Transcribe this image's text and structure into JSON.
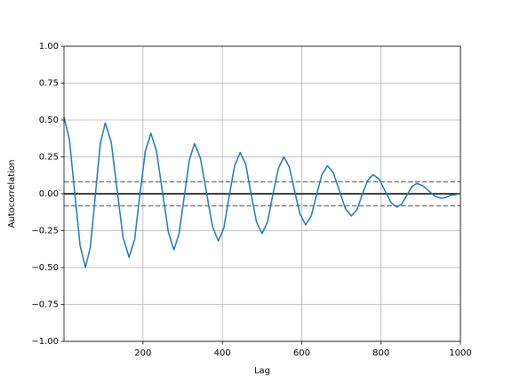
{
  "chart_data": {
    "type": "line",
    "xlabel": "Lag",
    "ylabel": "Autocorrelation",
    "x": [
      1,
      14.5,
      28,
      41.5,
      55,
      67.5,
      80,
      92.5,
      105,
      120,
      135,
      150,
      165,
      179,
      192,
      206,
      220,
      234,
      249,
      264,
      278,
      291,
      304,
      317,
      330,
      345,
      360,
      375,
      390,
      404,
      417,
      431,
      445,
      459,
      472,
      486,
      500,
      514,
      527,
      541,
      555,
      569,
      582,
      596,
      610,
      624,
      637,
      651,
      665,
      680,
      695,
      710,
      725,
      739,
      752,
      766,
      780,
      795,
      810,
      825,
      840,
      852,
      865,
      878,
      890,
      905,
      920,
      935,
      950,
      963,
      975,
      988,
      1000
    ],
    "series": [
      {
        "name": "autocorrelation",
        "color": "#1f77b4",
        "values": [
          0.52,
          0.37,
          0.01,
          -0.35,
          -0.5,
          -0.36,
          -0.01,
          0.34,
          0.48,
          0.35,
          0.025,
          -0.3,
          -0.43,
          -0.31,
          -0.01,
          0.29,
          0.41,
          0.29,
          0.015,
          -0.26,
          -0.38,
          -0.27,
          -0.02,
          0.23,
          0.34,
          0.24,
          0.01,
          -0.22,
          -0.32,
          -0.23,
          -0.02,
          0.19,
          0.28,
          0.2,
          0.005,
          -0.19,
          -0.27,
          -0.19,
          -0.01,
          0.17,
          0.25,
          0.18,
          0.02,
          -0.14,
          -0.21,
          -0.15,
          -0.01,
          0.13,
          0.19,
          0.14,
          0.02,
          -0.1,
          -0.15,
          -0.11,
          -0.01,
          0.09,
          0.13,
          0.1,
          0.02,
          -0.06,
          -0.09,
          -0.07,
          -0.01,
          0.05,
          0.07,
          0.055,
          0.02,
          -0.015,
          -0.03,
          -0.025,
          -0.01,
          -0.005,
          0.0
        ]
      }
    ],
    "reference_lines": [
      {
        "value": 0.0815,
        "color": "grey",
        "style": "dashed"
      },
      {
        "value": -0.0815,
        "color": "grey",
        "style": "dashed"
      },
      {
        "value": 0,
        "color": "black",
        "style": "solid"
      }
    ],
    "xlim": [
      1,
      1000
    ],
    "xticks": [
      200,
      400,
      600,
      800,
      1000
    ],
    "ylim": [
      -1,
      1
    ],
    "yticks": [
      {
        "value": -1,
        "label": "−1.00"
      },
      {
        "value": -0.75,
        "label": "−0.75"
      },
      {
        "value": -0.5,
        "label": "−0.50"
      },
      {
        "value": -0.25,
        "label": "−0.25"
      },
      {
        "value": 0,
        "label": "0.00"
      },
      {
        "value": 0.25,
        "label": "0.25"
      },
      {
        "value": 0.5,
        "label": "0.50"
      },
      {
        "value": 0.75,
        "label": "0.75"
      },
      {
        "value": 1,
        "label": "1.00"
      }
    ],
    "grid": true
  }
}
